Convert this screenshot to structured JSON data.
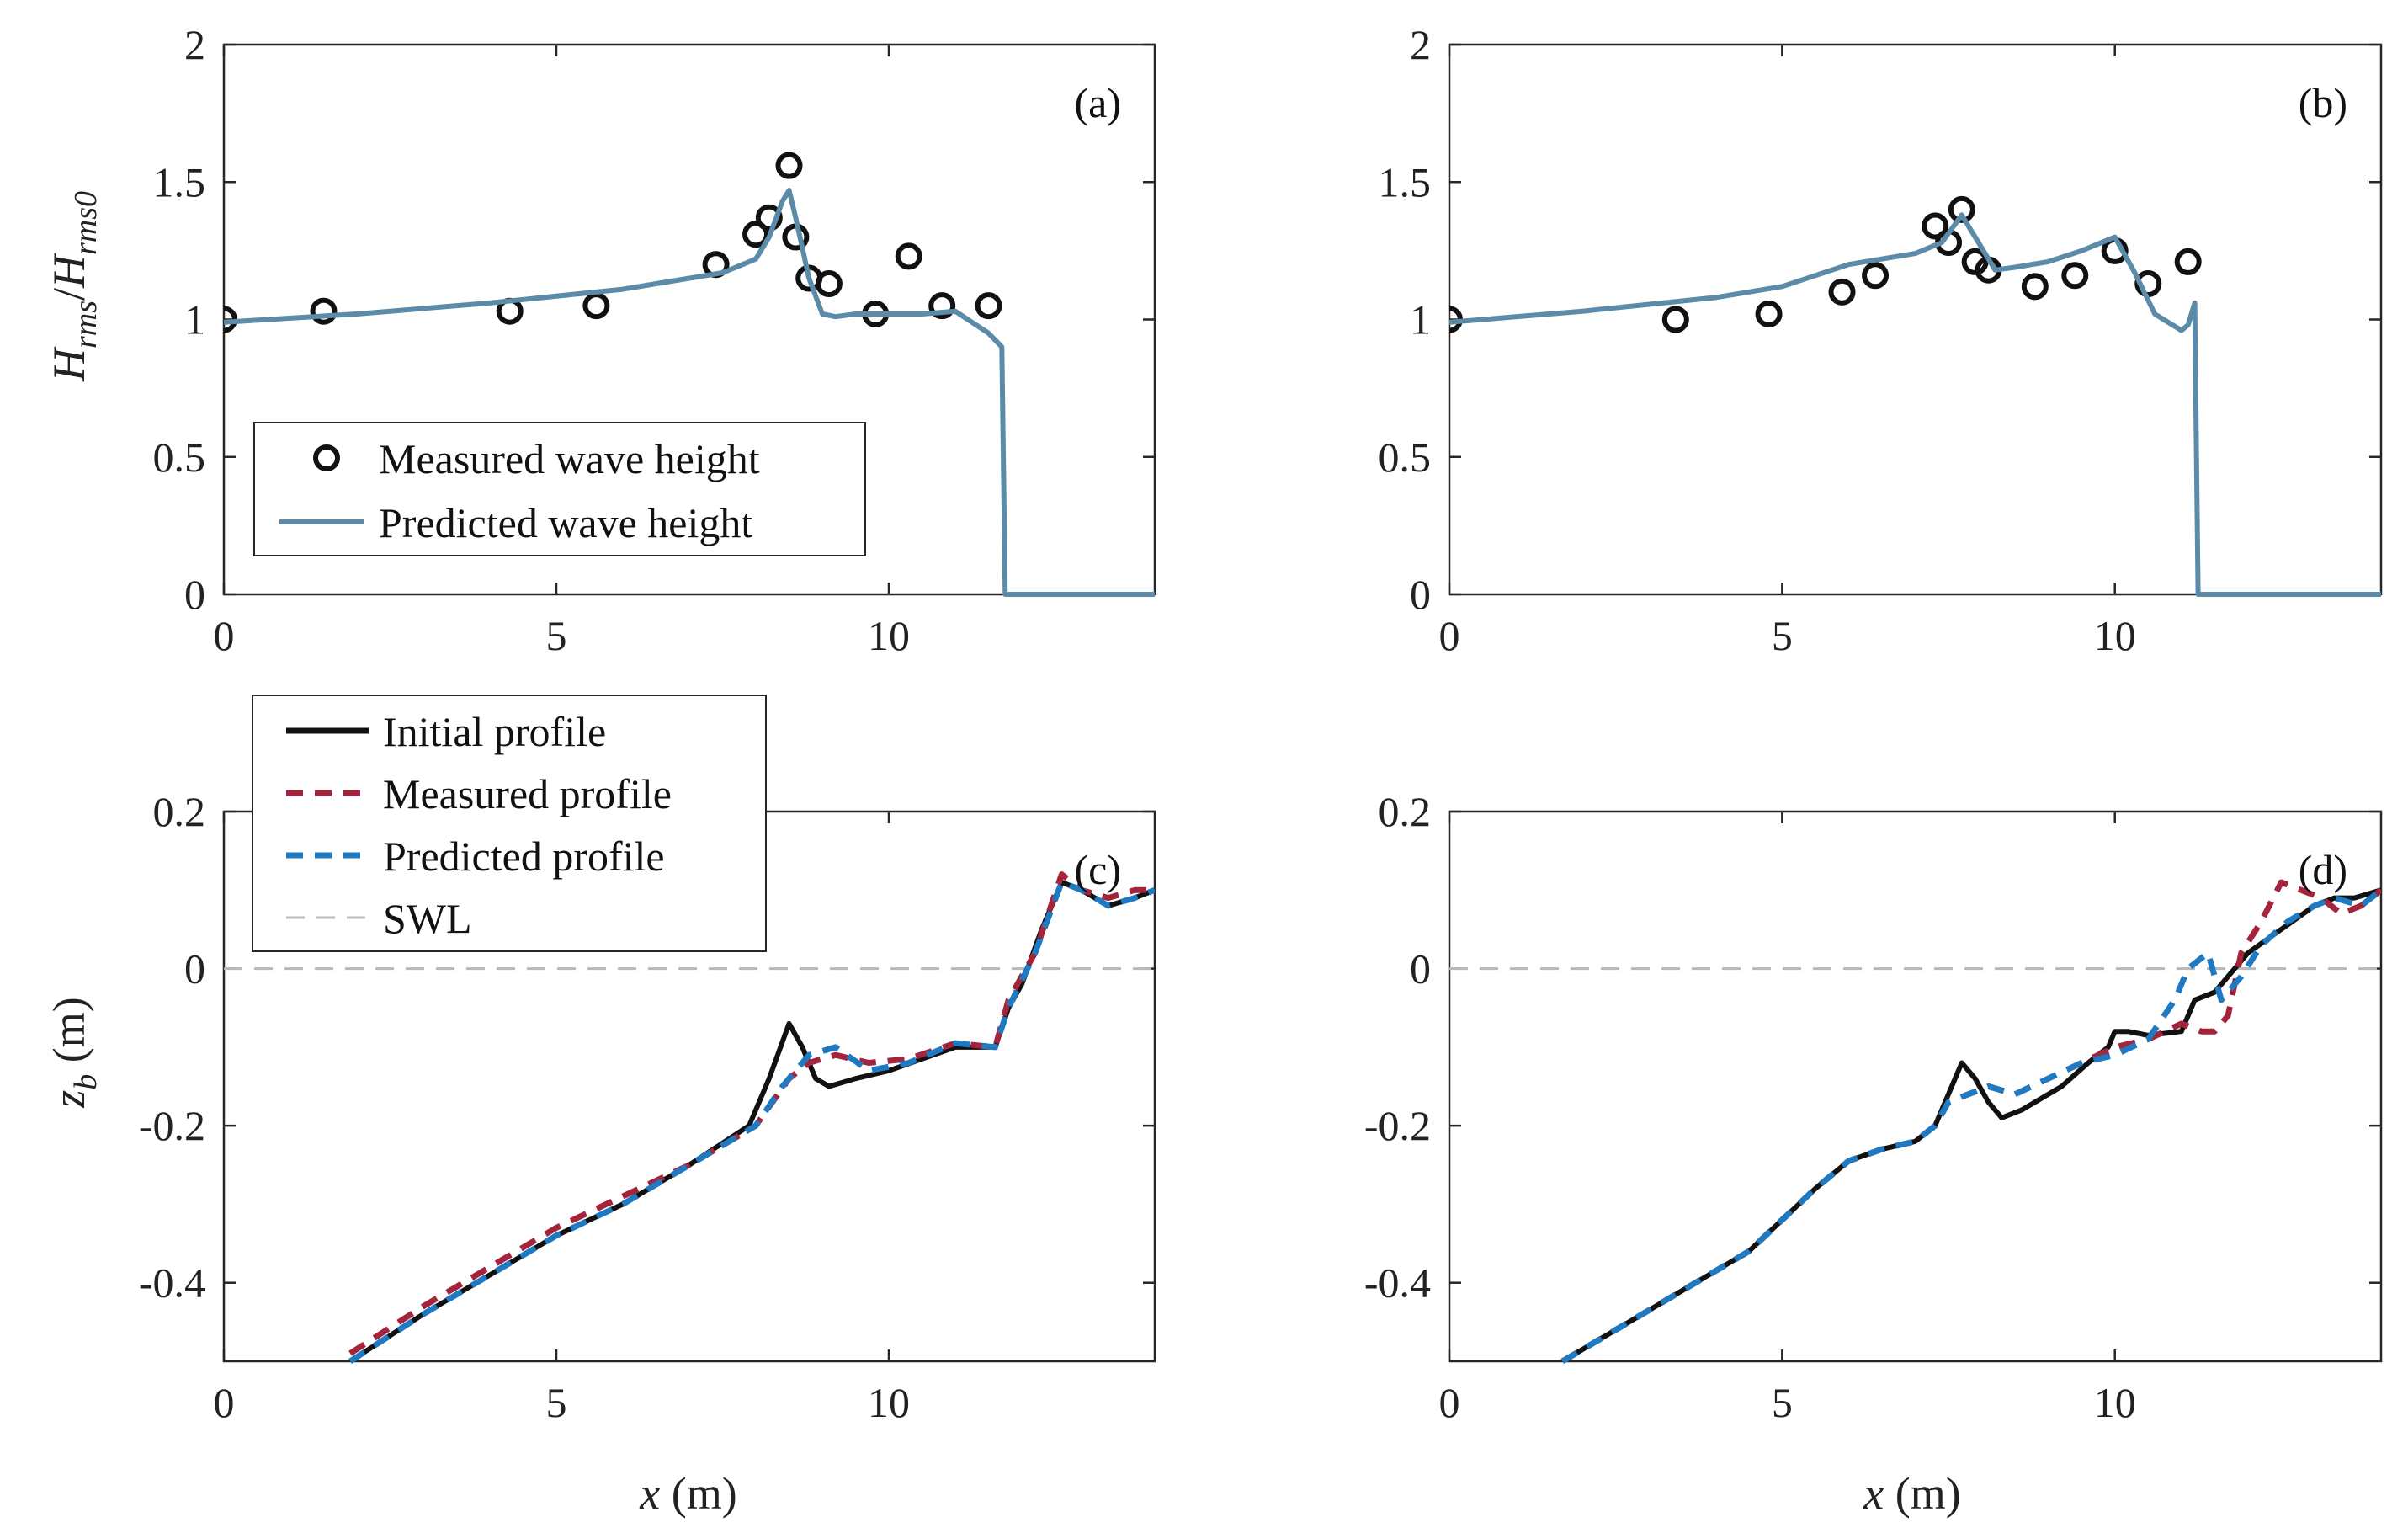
{
  "colors": {
    "measured_marker": "#111111",
    "predicted_wave": "#5b8ba8",
    "initial_profile": "#111111",
    "measured_profile": "#a3243b",
    "predicted_profile": "#1f7ac2",
    "swl": "#b8b8b8"
  },
  "legend_top": {
    "measured": "Measured wave height",
    "predicted": "Predicted wave height"
  },
  "legend_bottom": {
    "initial": "Initial profile",
    "measured": "Measured profile",
    "predicted": "Predicted profile",
    "swl": "SWL"
  },
  "chart_data": [
    {
      "id": "a",
      "type": "scatter+line",
      "panel_label": "(a)",
      "xlabel": "",
      "ylabel": "H_rms/H_rms0",
      "xlim": [
        0,
        14
      ],
      "ylim": [
        0,
        2
      ],
      "xticks": [
        "0",
        "5",
        "10"
      ],
      "yticks": [
        "0",
        "0.5",
        "1",
        "1.5",
        "2"
      ],
      "series": [
        {
          "name": "Measured wave height",
          "kind": "markers",
          "x": [
            0,
            1.5,
            4.3,
            5.6,
            7.4,
            8.0,
            8.2,
            8.5,
            8.6,
            8.8,
            9.1,
            9.8,
            10.3,
            10.8,
            11.5
          ],
          "y": [
            1.0,
            1.03,
            1.03,
            1.05,
            1.2,
            1.31,
            1.37,
            1.56,
            1.3,
            1.15,
            1.13,
            1.02,
            1.23,
            1.05,
            1.05
          ]
        },
        {
          "name": "Predicted wave height",
          "kind": "line",
          "x": [
            0,
            2,
            4,
            6,
            7.5,
            8.0,
            8.2,
            8.4,
            8.5,
            8.6,
            8.8,
            9.0,
            9.2,
            9.5,
            10,
            10.5,
            11,
            11.5,
            11.7,
            11.75,
            12,
            14
          ],
          "y": [
            0.99,
            1.02,
            1.06,
            1.11,
            1.17,
            1.22,
            1.3,
            1.43,
            1.47,
            1.37,
            1.15,
            1.02,
            1.01,
            1.02,
            1.02,
            1.02,
            1.03,
            0.95,
            0.9,
            0,
            0,
            0
          ]
        }
      ]
    },
    {
      "id": "b",
      "type": "scatter+line",
      "panel_label": "(b)",
      "xlabel": "",
      "ylabel": "",
      "xlim": [
        0,
        14
      ],
      "ylim": [
        0,
        2
      ],
      "xticks": [
        "0",
        "5",
        "10"
      ],
      "yticks": [
        "0",
        "0.5",
        "1",
        "1.5",
        "2"
      ],
      "series": [
        {
          "name": "Measured wave height",
          "kind": "markers",
          "x": [
            0,
            3.4,
            4.8,
            5.9,
            6.4,
            7.3,
            7.5,
            7.7,
            7.9,
            8.1,
            8.8,
            9.4,
            10.0,
            10.5,
            11.1
          ],
          "y": [
            1.0,
            1.0,
            1.02,
            1.1,
            1.16,
            1.34,
            1.28,
            1.4,
            1.21,
            1.18,
            1.12,
            1.16,
            1.25,
            1.13,
            1.21
          ]
        },
        {
          "name": "Predicted wave height",
          "kind": "line",
          "x": [
            0,
            2,
            4,
            5,
            6,
            7,
            7.4,
            7.7,
            7.9,
            8.2,
            8.5,
            9,
            9.5,
            9.9,
            10.0,
            10.3,
            10.6,
            11.0,
            11.1,
            11.2,
            11.25,
            11.3,
            14
          ],
          "y": [
            0.99,
            1.03,
            1.08,
            1.12,
            1.2,
            1.24,
            1.28,
            1.38,
            1.3,
            1.18,
            1.19,
            1.21,
            1.25,
            1.29,
            1.3,
            1.17,
            1.02,
            0.96,
            0.98,
            1.06,
            0,
            0,
            0
          ]
        }
      ]
    },
    {
      "id": "c",
      "type": "line",
      "panel_label": "(c)",
      "xlabel": "x (m)",
      "ylabel": "z_b (m)",
      "xlim": [
        0,
        14
      ],
      "ylim": [
        -0.5,
        0.2
      ],
      "xticks": [
        "0",
        "5",
        "10"
      ],
      "yticks": [
        "-0.4",
        "-0.2",
        "0",
        "0.2"
      ],
      "series": [
        {
          "name": "SWL",
          "kind": "swl",
          "x": [
            0,
            14
          ],
          "y": [
            0,
            0
          ]
        },
        {
          "name": "Initial profile",
          "kind": "solid",
          "x": [
            1.9,
            3,
            4,
            5,
            6,
            7,
            7.9,
            8.2,
            8.5,
            8.7,
            8.9,
            9.1,
            9.5,
            10,
            10.5,
            11,
            11.6,
            11.8,
            12,
            12.3,
            12.6,
            12.9,
            13.3,
            13.7,
            14
          ],
          "y": [
            -0.5,
            -0.44,
            -0.39,
            -0.34,
            -0.3,
            -0.25,
            -0.2,
            -0.14,
            -0.07,
            -0.1,
            -0.14,
            -0.15,
            -0.14,
            -0.13,
            -0.115,
            -0.1,
            -0.1,
            -0.05,
            -0.02,
            0.05,
            0.11,
            0.1,
            0.08,
            0.09,
            0.1
          ]
        },
        {
          "name": "Measured profile",
          "kind": "dash",
          "x": [
            1.9,
            3,
            4,
            5,
            6,
            7,
            8,
            8.5,
            8.8,
            9.2,
            9.7,
            10.3,
            11,
            11.6,
            11.8,
            12.2,
            12.6,
            12.9,
            13.3,
            13.7,
            14
          ],
          "y": [
            -0.49,
            -0.43,
            -0.38,
            -0.33,
            -0.29,
            -0.25,
            -0.2,
            -0.14,
            -0.12,
            -0.11,
            -0.12,
            -0.115,
            -0.095,
            -0.1,
            -0.04,
            0.02,
            0.12,
            0.1,
            0.09,
            0.1,
            0.1
          ]
        },
        {
          "name": "Predicted profile",
          "kind": "dash",
          "x": [
            1.9,
            3,
            4,
            5,
            6,
            7,
            8,
            8.4,
            8.8,
            9.2,
            9.7,
            10.3,
            11,
            11.6,
            11.8,
            12.2,
            12.6,
            12.9,
            13.3,
            13.7,
            14
          ],
          "y": [
            -0.5,
            -0.44,
            -0.39,
            -0.34,
            -0.3,
            -0.25,
            -0.2,
            -0.15,
            -0.11,
            -0.1,
            -0.13,
            -0.12,
            -0.095,
            -0.1,
            -0.05,
            0.02,
            0.11,
            0.1,
            0.08,
            0.09,
            0.1
          ]
        }
      ]
    },
    {
      "id": "d",
      "type": "line",
      "panel_label": "(d)",
      "xlabel": "x (m)",
      "ylabel": "",
      "xlim": [
        0,
        14
      ],
      "ylim": [
        -0.5,
        0.2
      ],
      "xticks": [
        "0",
        "5",
        "10"
      ],
      "yticks": [
        "-0.4",
        "-0.2",
        "0",
        "0.2"
      ],
      "series": [
        {
          "name": "SWL",
          "kind": "swl",
          "x": [
            0,
            14
          ],
          "y": [
            0,
            0
          ]
        },
        {
          "name": "Initial profile",
          "kind": "solid",
          "x": [
            1.7,
            2.5,
            3.5,
            4.5,
            5.5,
            6.0,
            6.5,
            7.0,
            7.3,
            7.5,
            7.7,
            7.9,
            8.1,
            8.3,
            8.6,
            9.2,
            9.6,
            9.9,
            10.0,
            10.2,
            10.5,
            11.0,
            11.2,
            11.5,
            12.0,
            12.5,
            13.0,
            13.3,
            13.6,
            14
          ],
          "y": [
            -0.5,
            -0.46,
            -0.41,
            -0.36,
            -0.28,
            -0.245,
            -0.23,
            -0.22,
            -0.2,
            -0.16,
            -0.12,
            -0.14,
            -0.17,
            -0.19,
            -0.18,
            -0.15,
            -0.12,
            -0.1,
            -0.08,
            -0.08,
            -0.085,
            -0.08,
            -0.04,
            -0.03,
            0.02,
            0.05,
            0.08,
            0.09,
            0.09,
            0.1
          ]
        },
        {
          "name": "Measured profile",
          "kind": "dash",
          "x": [
            1.7,
            2.5,
            3.5,
            4.5,
            5.5,
            6.0,
            6.5,
            7.0,
            7.3,
            7.5,
            7.8,
            8.1,
            8.5,
            9.0,
            9.5,
            10.0,
            10.5,
            11.0,
            11.3,
            11.5,
            11.7,
            11.9,
            12.2,
            12.5,
            12.8,
            13.1,
            13.4,
            13.7,
            14
          ],
          "y": [
            -0.5,
            -0.46,
            -0.41,
            -0.36,
            -0.28,
            -0.245,
            -0.23,
            -0.22,
            -0.2,
            -0.17,
            -0.16,
            -0.15,
            -0.16,
            -0.14,
            -0.12,
            -0.1,
            -0.09,
            -0.07,
            -0.08,
            -0.08,
            -0.06,
            0.02,
            0.06,
            0.11,
            0.1,
            0.09,
            0.07,
            0.08,
            0.1
          ]
        },
        {
          "name": "Predicted profile",
          "kind": "dash",
          "x": [
            1.7,
            2.5,
            3.5,
            4.5,
            5.5,
            6.0,
            6.5,
            7.0,
            7.3,
            7.5,
            7.8,
            8.1,
            8.5,
            9.0,
            9.5,
            10.0,
            10.5,
            10.9,
            11.1,
            11.4,
            11.6,
            11.9,
            12.2,
            12.6,
            13.0,
            13.3,
            13.7,
            14
          ],
          "y": [
            -0.5,
            -0.46,
            -0.41,
            -0.36,
            -0.28,
            -0.245,
            -0.23,
            -0.22,
            -0.2,
            -0.17,
            -0.16,
            -0.15,
            -0.16,
            -0.14,
            -0.12,
            -0.11,
            -0.09,
            -0.04,
            0.0,
            0.02,
            -0.04,
            -0.01,
            0.03,
            0.06,
            0.08,
            0.09,
            0.08,
            0.1
          ]
        }
      ]
    }
  ]
}
